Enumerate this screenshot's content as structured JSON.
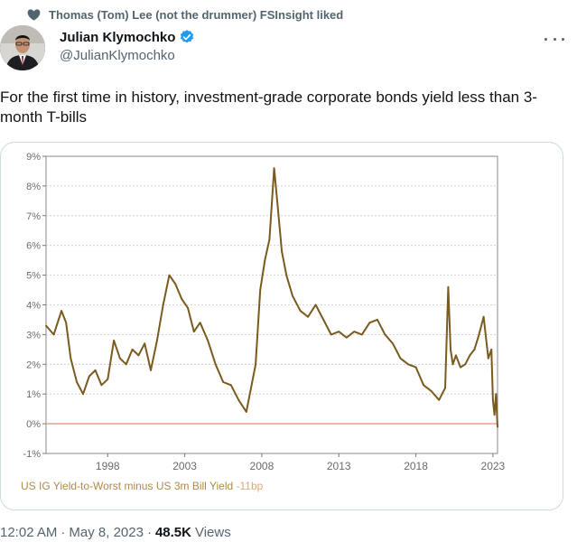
{
  "social_context": {
    "text": "Thomas (Tom) Lee (not the drummer) FSInsight liked",
    "icon": "heart-icon"
  },
  "author": {
    "display_name": "Julian Klymochko",
    "handle": "@JulianKlymochko",
    "verified_color": "#1d9bf0"
  },
  "tweet": {
    "text": "For the first time in history, investment-grade corporate bonds yield less than 3-month T-bills"
  },
  "footer": {
    "time": "12:02 AM",
    "separator": "·",
    "date": "May 8, 2023",
    "views_count": "48.5K",
    "views_label": "Views"
  },
  "chart_data": {
    "type": "line",
    "title": "",
    "xlabel": "",
    "ylabel": "",
    "legend": "US IG Yield-to-Worst minus US 3m Bill Yield",
    "legend_value": "-11bp",
    "line_color": "#7a5a1e",
    "zero_line_color": "#e8a99a",
    "x_range": [
      1994.0,
      2023.3
    ],
    "ylim": [
      -1,
      9
    ],
    "x_ticks": [
      1998,
      2003,
      2008,
      2013,
      2018,
      2023
    ],
    "x_tick_labels": [
      "1998",
      "2003",
      "2008",
      "2013",
      "2018",
      "2023"
    ],
    "y_ticks": [
      -1,
      0,
      1,
      2,
      3,
      4,
      5,
      6,
      7,
      8,
      9
    ],
    "y_tick_labels": [
      "-1%",
      "0%",
      "1%",
      "2%",
      "3%",
      "4%",
      "5%",
      "6%",
      "7%",
      "8%",
      "9%"
    ],
    "series": [
      {
        "x": [
          1994.0,
          1994.5,
          1995.0,
          1995.3,
          1995.6,
          1996.0,
          1996.4,
          1996.8,
          1997.2,
          1997.6,
          1998.0,
          1998.4,
          1998.8,
          1999.2,
          1999.6,
          2000.0,
          2000.4,
          2000.8,
          2001.2,
          2001.6,
          2002.0,
          2002.4,
          2002.8,
          2003.2,
          2003.6,
          2004.0,
          2004.5,
          2005.0,
          2005.5,
          2006.0,
          2006.5,
          2007.0,
          2007.3,
          2007.6,
          2007.9,
          2008.2,
          2008.5,
          2008.8,
          2009.0,
          2009.3,
          2009.6,
          2010.0,
          2010.5,
          2011.0,
          2011.5,
          2012.0,
          2012.5,
          2013.0,
          2013.5,
          2014.0,
          2014.5,
          2015.0,
          2015.5,
          2016.0,
          2016.5,
          2017.0,
          2017.5,
          2018.0,
          2018.5,
          2019.0,
          2019.5,
          2019.9,
          2020.1,
          2020.25,
          2020.4,
          2020.6,
          2020.9,
          2021.2,
          2021.5,
          2021.8,
          2022.1,
          2022.4,
          2022.7,
          2022.9,
          2023.0,
          2023.1,
          2023.2,
          2023.3
        ],
        "y": [
          3.3,
          3.0,
          3.8,
          3.4,
          2.2,
          1.4,
          1.0,
          1.6,
          1.8,
          1.3,
          1.5,
          2.8,
          2.2,
          2.0,
          2.5,
          2.3,
          2.7,
          1.8,
          2.8,
          4.0,
          5.0,
          4.7,
          4.2,
          3.9,
          3.1,
          3.4,
          2.8,
          2.0,
          1.4,
          1.3,
          0.8,
          0.4,
          1.2,
          2.0,
          4.5,
          5.5,
          6.2,
          8.6,
          7.5,
          5.8,
          5.0,
          4.3,
          3.8,
          3.6,
          4.0,
          3.5,
          3.0,
          3.1,
          2.9,
          3.1,
          3.0,
          3.4,
          3.5,
          3.0,
          2.7,
          2.2,
          2.0,
          1.9,
          1.3,
          1.1,
          0.8,
          1.2,
          4.6,
          2.5,
          2.0,
          2.3,
          1.9,
          2.0,
          2.3,
          2.5,
          3.0,
          3.6,
          2.2,
          2.5,
          0.8,
          0.3,
          1.0,
          -0.11
        ]
      }
    ]
  }
}
